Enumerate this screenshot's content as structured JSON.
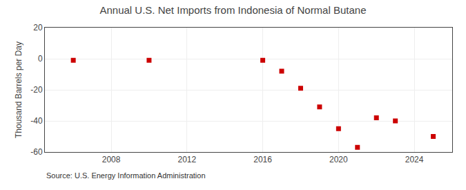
{
  "chart_data": {
    "type": "scatter",
    "title": "Annual U.S. Net Imports from Indonesia of Normal Butane",
    "ylabel": "Thousand Barrels per Day",
    "source": "Source: U.S. Energy Information Administration",
    "x": [
      2006,
      2010,
      2016,
      2017,
      2018,
      2019,
      2020,
      2021,
      2022,
      2023,
      2025
    ],
    "values": [
      -1,
      -1,
      -1,
      -8,
      -19,
      -31,
      -45,
      -57,
      -38,
      -40,
      -50
    ],
    "color": "#cc0000",
    "marker": "square",
    "xlim": [
      2004.5,
      2026
    ],
    "xticks": [
      2008,
      2012,
      2016,
      2020,
      2024
    ],
    "ylim": [
      -60,
      20
    ],
    "yticks": [
      -60,
      -40,
      -20,
      0,
      20
    ],
    "grid": true
  }
}
